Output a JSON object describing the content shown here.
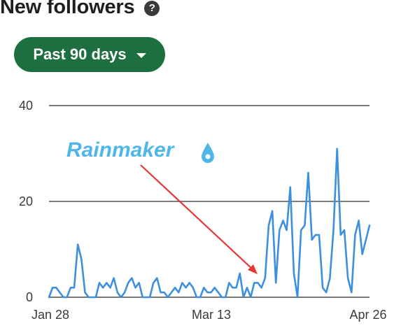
{
  "header": {
    "title": "New followers",
    "help_icon": "question-circle-icon"
  },
  "range_button": {
    "label": "Past 90 days",
    "icon": "caret-down-icon"
  },
  "watermark": {
    "text": "Rainmaker",
    "icon": "water-drop-icon"
  },
  "colors": {
    "line": "#3d8fe0",
    "button": "#1e6f3f",
    "arrow": "#e53935",
    "watermark": "#4fb6ea"
  },
  "chart_data": {
    "type": "line",
    "x_tick_labels": [
      "Jan 28",
      "Mar 13",
      "Apr 26"
    ],
    "y_ticks": [
      0,
      20,
      40
    ],
    "ylim": [
      0,
      40
    ],
    "grid": "horizontal",
    "series": [
      {
        "values": [
          0,
          2,
          2,
          1,
          0,
          0,
          2,
          2,
          11,
          8,
          1,
          0,
          0,
          0,
          3,
          2,
          3,
          2,
          4,
          1,
          0,
          1,
          3,
          4,
          2,
          3,
          0,
          0,
          0,
          3,
          4,
          1,
          1,
          0,
          1,
          2,
          1,
          3,
          2,
          3,
          2,
          0,
          0,
          2,
          1,
          1,
          2,
          1,
          0,
          0,
          3,
          2,
          2,
          5,
          0,
          2,
          0,
          3,
          3,
          2,
          4,
          15,
          18,
          3,
          14,
          16,
          14,
          23,
          5,
          0,
          14,
          15,
          26,
          12,
          13,
          13,
          2,
          1,
          4,
          14,
          31,
          13,
          14,
          4,
          1,
          13,
          16,
          9,
          12,
          15
        ]
      }
    ]
  }
}
